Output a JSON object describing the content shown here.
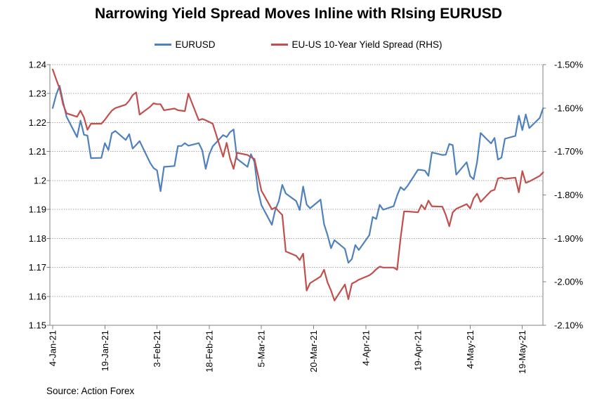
{
  "chart_data": {
    "type": "line",
    "title": "Narrowing Yield Spread Moves Inline with RIsing EURUSD",
    "source": "Source: Action Forex",
    "legend_position": "top",
    "grid": "horizontal-dotted",
    "axis_color": "#808080",
    "gridline_color": "#A6A6A6",
    "x_axis": {
      "type": "date",
      "start": "2021-01-04",
      "end": "2021-05-25",
      "tick_interval_days": 15,
      "tick_labels": [
        "4-Jan-21",
        "19-Jan-21",
        "3-Feb-21",
        "18-Feb-21",
        "5-Mar-21",
        "20-Mar-21",
        "4-Apr-21",
        "19-Apr-21",
        "4-May-21",
        "19-May-21"
      ]
    },
    "left_axis": {
      "min": 1.15,
      "max": 1.24,
      "tick_step": 0.01,
      "tick_labels": [
        "1.24",
        "1.23",
        "1.22",
        "1.21",
        "1.2",
        "1.19",
        "1.18",
        "1.17",
        "1.16",
        "1.15"
      ]
    },
    "right_axis": {
      "min": -2.1,
      "max": -1.5,
      "tick_step": 0.1,
      "tick_labels": [
        "-1.50%",
        "-1.60%",
        "-1.70%",
        "-1.80%",
        "-1.90%",
        "-2.00%",
        "-2.10%"
      ]
    },
    "dates": [
      "2021-01-04",
      "2021-01-05",
      "2021-01-06",
      "2021-01-07",
      "2021-01-08",
      "2021-01-11",
      "2021-01-12",
      "2021-01-13",
      "2021-01-14",
      "2021-01-15",
      "2021-01-18",
      "2021-01-19",
      "2021-01-20",
      "2021-01-21",
      "2021-01-22",
      "2021-01-25",
      "2021-01-26",
      "2021-01-27",
      "2021-01-28",
      "2021-01-29",
      "2021-02-01",
      "2021-02-02",
      "2021-02-03",
      "2021-02-04",
      "2021-02-05",
      "2021-02-08",
      "2021-02-09",
      "2021-02-10",
      "2021-02-11",
      "2021-02-12",
      "2021-02-15",
      "2021-02-16",
      "2021-02-17",
      "2021-02-18",
      "2021-02-19",
      "2021-02-22",
      "2021-02-23",
      "2021-02-24",
      "2021-02-25",
      "2021-02-26",
      "2021-03-01",
      "2021-03-02",
      "2021-03-03",
      "2021-03-04",
      "2021-03-05",
      "2021-03-08",
      "2021-03-09",
      "2021-03-10",
      "2021-03-11",
      "2021-03-12",
      "2021-03-15",
      "2021-03-16",
      "2021-03-17",
      "2021-03-18",
      "2021-03-19",
      "2021-03-22",
      "2021-03-23",
      "2021-03-24",
      "2021-03-25",
      "2021-03-26",
      "2021-03-29",
      "2021-03-30",
      "2021-03-31",
      "2021-04-01",
      "2021-04-02",
      "2021-04-05",
      "2021-04-06",
      "2021-04-07",
      "2021-04-08",
      "2021-04-09",
      "2021-04-12",
      "2021-04-13",
      "2021-04-14",
      "2021-04-15",
      "2021-04-16",
      "2021-04-19",
      "2021-04-20",
      "2021-04-21",
      "2021-04-22",
      "2021-04-23",
      "2021-04-26",
      "2021-04-27",
      "2021-04-28",
      "2021-04-29",
      "2021-04-30",
      "2021-05-03",
      "2021-05-04",
      "2021-05-05",
      "2021-05-06",
      "2021-05-07",
      "2021-05-10",
      "2021-05-11",
      "2021-05-12",
      "2021-05-13",
      "2021-05-14",
      "2021-05-17",
      "2021-05-18",
      "2021-05-19",
      "2021-05-20",
      "2021-05-21",
      "2021-05-24",
      "2021-05-25"
    ],
    "series": [
      {
        "name": "EURUSD",
        "axis": "left",
        "color": "#4F81BD",
        "values": [
          1.225,
          1.2296,
          1.2327,
          1.227,
          1.222,
          1.215,
          1.2207,
          1.2158,
          1.2155,
          1.2077,
          1.2078,
          1.2129,
          1.2105,
          1.2163,
          1.2171,
          1.214,
          1.216,
          1.211,
          1.2123,
          1.2136,
          1.2061,
          1.2043,
          1.2035,
          1.1963,
          1.2047,
          1.205,
          1.2119,
          1.2119,
          1.2129,
          1.212,
          1.2129,
          1.2104,
          1.204,
          1.209,
          1.2118,
          1.2157,
          1.215,
          1.2167,
          1.2176,
          1.2075,
          1.2047,
          1.2091,
          1.2064,
          1.1967,
          1.1915,
          1.1847,
          1.1899,
          1.1929,
          1.1985,
          1.1955,
          1.1929,
          1.1898,
          1.1979,
          1.1917,
          1.1904,
          1.1934,
          1.1849,
          1.1812,
          1.1766,
          1.1794,
          1.1764,
          1.1716,
          1.1729,
          1.1777,
          1.176,
          1.1811,
          1.1874,
          1.1867,
          1.1916,
          1.1899,
          1.1911,
          1.1948,
          1.1977,
          1.1967,
          1.1981,
          1.2037,
          1.2036,
          1.2034,
          1.2016,
          1.2097,
          1.2088,
          1.2089,
          1.2126,
          1.2122,
          1.202,
          1.2063,
          1.2015,
          1.2004,
          1.2064,
          1.2164,
          1.2128,
          1.2147,
          1.2072,
          1.2079,
          1.2144,
          1.2154,
          1.2224,
          1.2174,
          1.2228,
          1.2181,
          1.2216,
          1.225
        ]
      },
      {
        "name": "EU-US 10-Year Yield Spread (RHS)",
        "axis": "right",
        "color": "#C0504D",
        "values": [
          -1.511,
          -1.534,
          -1.555,
          -1.592,
          -1.612,
          -1.62,
          -1.606,
          -1.622,
          -1.65,
          -1.636,
          -1.636,
          -1.627,
          -1.616,
          -1.606,
          -1.6,
          -1.592,
          -1.583,
          -1.57,
          -1.564,
          -1.615,
          -1.597,
          -1.589,
          -1.591,
          -1.591,
          -1.605,
          -1.601,
          -1.605,
          -1.606,
          -1.607,
          -1.567,
          -1.628,
          -1.625,
          -1.628,
          -1.632,
          -1.636,
          -1.712,
          -1.68,
          -1.716,
          -1.74,
          -1.703,
          -1.708,
          -1.713,
          -1.717,
          -1.753,
          -1.79,
          -1.833,
          -1.829,
          -1.838,
          -1.846,
          -1.93,
          -1.94,
          -1.95,
          -1.935,
          -2.02,
          -2.003,
          -1.988,
          -1.972,
          -2.001,
          -2.02,
          -2.043,
          -2.006,
          -2.04,
          -2.004,
          -2.0,
          -1.995,
          -1.985,
          -1.979,
          -1.971,
          -1.965,
          -1.967,
          -1.967,
          -1.972,
          -1.9,
          -1.838,
          -1.838,
          -1.84,
          -1.823,
          -1.833,
          -1.813,
          -1.826,
          -1.827,
          -1.846,
          -1.872,
          -1.84,
          -1.832,
          -1.821,
          -1.831,
          -1.808,
          -1.797,
          -1.816,
          -1.791,
          -1.788,
          -1.762,
          -1.76,
          -1.763,
          -1.76,
          -1.794,
          -1.745,
          -1.772,
          -1.769,
          -1.756,
          -1.748
        ]
      }
    ]
  }
}
